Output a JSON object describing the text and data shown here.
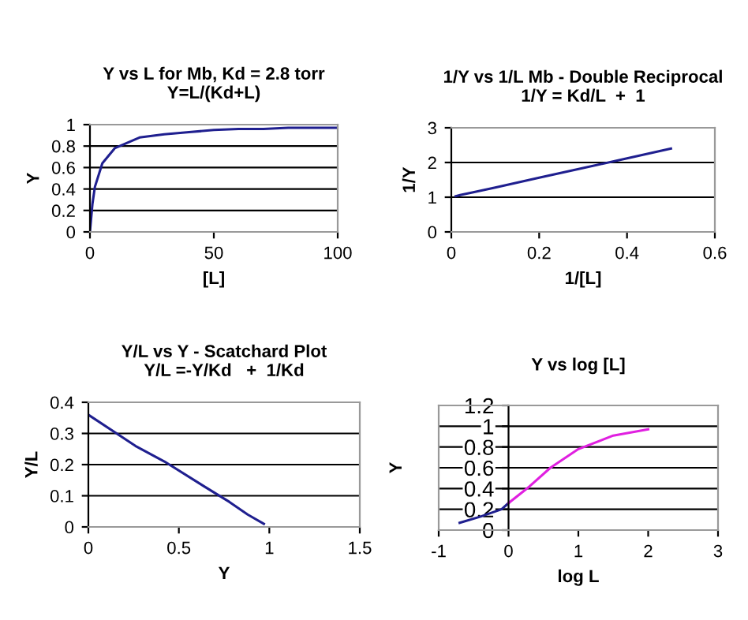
{
  "chart_data": [
    {
      "type": "line",
      "title": "Y vs L for Mb, Kd = 2.8 torr\nY=L/(Kd+L)",
      "xlabel": "[L]",
      "ylabel": "Y",
      "xlim": [
        0,
        100
      ],
      "xticks": [
        0,
        50,
        100
      ],
      "ylim": [
        0,
        1
      ],
      "yticks": [
        0,
        0.2,
        0.4,
        0.6,
        0.8,
        1
      ],
      "grid": "y",
      "legend": false,
      "series": [
        {
          "color": "#1f1f8f",
          "x": [
            0,
            1,
            2,
            5,
            10,
            20,
            30,
            40,
            50,
            60,
            70,
            80,
            90,
            100
          ],
          "values": [
            0,
            0.26,
            0.42,
            0.64,
            0.78,
            0.88,
            0.91,
            0.93,
            0.95,
            0.96,
            0.96,
            0.97,
            0.97,
            0.97
          ]
        }
      ]
    },
    {
      "type": "line",
      "title": "1/Y vs 1/L Mb - Double Reciprocal\n1/Y = Kd/L  +  1",
      "xlabel": "1/[L]",
      "ylabel": "1/Y",
      "xlim": [
        0,
        0.6
      ],
      "xticks": [
        0,
        0.2,
        0.4,
        0.6
      ],
      "ylim": [
        0,
        3
      ],
      "yticks": [
        0,
        1,
        2,
        3
      ],
      "grid": "y",
      "legend": false,
      "series": [
        {
          "color": "#1f1f8f",
          "x": [
            0.01,
            0.02,
            0.05,
            0.1,
            0.2,
            0.3,
            0.4,
            0.5
          ],
          "values": [
            1.03,
            1.06,
            1.14,
            1.28,
            1.56,
            1.84,
            2.12,
            2.4
          ]
        }
      ]
    },
    {
      "type": "line",
      "title": "Y/L vs Y - Scatchard Plot\nY/L =-Y/Kd   +  1/Kd",
      "xlabel": "Y",
      "ylabel": "Y/L",
      "xlim": [
        0,
        1.5
      ],
      "xticks": [
        0,
        0.5,
        1,
        1.5
      ],
      "ylim": [
        0,
        0.4
      ],
      "yticks": [
        0,
        0.1,
        0.2,
        0.3,
        0.4
      ],
      "grid": "y",
      "legend": false,
      "series": [
        {
          "color": "#1f1f8f",
          "x": [
            0,
            0.26,
            0.42,
            0.64,
            0.78,
            0.88,
            0.97
          ],
          "values": [
            0.36,
            0.26,
            0.21,
            0.13,
            0.08,
            0.04,
            0.01
          ]
        }
      ]
    },
    {
      "type": "line",
      "title": "Y vs log [L]",
      "xlabel": "log L",
      "ylabel": "Y",
      "xlim": [
        -1,
        3
      ],
      "xticks": [
        -1,
        0,
        1,
        2,
        3
      ],
      "ylim": [
        0,
        1.2
      ],
      "yticks": [
        0,
        0.2,
        0.4,
        0.6,
        0.8,
        1,
        1.2
      ],
      "grid": "y",
      "legend": false,
      "series": [
        {
          "color": "#1f1f8f",
          "x": [
            -0.7,
            -0.4,
            -0.1,
            0
          ],
          "values": [
            0.07,
            0.13,
            0.2,
            0.26
          ]
        },
        {
          "color": "#e020e0",
          "x": [
            0,
            0.3,
            0.6,
            1,
            1.5,
            2
          ],
          "values": [
            0.26,
            0.42,
            0.6,
            0.78,
            0.91,
            0.97
          ]
        }
      ]
    }
  ]
}
